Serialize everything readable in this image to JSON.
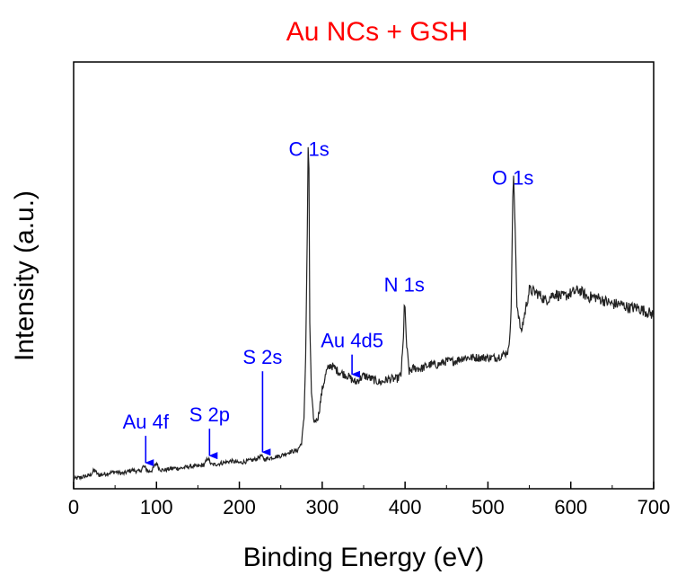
{
  "colors": {
    "title": "#ff0000",
    "annotation": "#0000ff",
    "line": "#222222",
    "axis": "#000000"
  },
  "chart_data": {
    "type": "line",
    "title": "Au NCs + GSH",
    "xlabel": "Binding Energy (eV)",
    "ylabel": "Intensity (a.u.)",
    "xlim": [
      0,
      700
    ],
    "ylim": [
      0,
      100
    ],
    "xticks": [
      0,
      100,
      200,
      300,
      400,
      500,
      600,
      700
    ],
    "xtick_labels": [
      "0",
      "100",
      "200",
      "300",
      "400",
      "500",
      "600",
      "700"
    ],
    "y_tick_labels": false,
    "grid": false,
    "legend": "none",
    "series": [
      {
        "x": [
          0,
          10,
          20,
          25,
          30,
          40,
          50,
          60,
          70,
          80,
          84,
          87,
          90,
          95,
          100,
          103,
          106,
          110,
          120,
          130,
          140,
          150,
          158,
          162,
          166,
          170,
          180,
          190,
          200,
          210,
          220,
          226,
          230,
          240,
          250,
          260,
          270,
          275,
          278,
          280,
          282,
          283,
          284,
          285,
          287,
          290,
          295,
          300,
          305,
          310,
          320,
          330,
          340,
          350,
          360,
          370,
          380,
          390,
          395,
          398,
          399,
          400,
          402,
          405,
          410,
          420,
          430,
          440,
          450,
          460,
          470,
          480,
          490,
          500,
          510,
          520,
          525,
          528,
          530,
          531,
          533,
          535,
          540,
          545,
          550,
          560,
          570,
          580,
          590,
          600,
          610,
          620,
          630,
          640,
          650,
          660,
          670,
          680,
          690,
          700
        ],
        "y": [
          1.0,
          1.5,
          2.0,
          3.5,
          2.0,
          2.5,
          3.0,
          2.5,
          3.5,
          3.0,
          4.5,
          4.0,
          3.0,
          3.5,
          5.5,
          4.0,
          3.5,
          3.5,
          4.0,
          4.0,
          4.5,
          4.5,
          5.0,
          7.0,
          5.0,
          5.0,
          5.5,
          6.0,
          5.5,
          6.0,
          6.5,
          7.5,
          6.5,
          7.0,
          7.5,
          8.5,
          9.0,
          11.0,
          18.0,
          35.0,
          70.0,
          94.0,
          88.0,
          45.0,
          25.0,
          17.0,
          18.0,
          26.0,
          31.0,
          33.0,
          31.0,
          30.0,
          28.0,
          30.0,
          29.0,
          28.0,
          29.0,
          29.0,
          30.0,
          40.0,
          50.0,
          48.0,
          38.0,
          31.0,
          32.0,
          32.0,
          33.0,
          33.0,
          34.0,
          34.0,
          35.0,
          35.0,
          35.0,
          35.0,
          35.0,
          36.0,
          37.0,
          48.0,
          80.0,
          86.0,
          70.0,
          50.0,
          42.0,
          48.0,
          54.0,
          53.0,
          51.0,
          53.0,
          52.0,
          53.0,
          54.0,
          52.0,
          52.0,
          51.0,
          50.0,
          50.0,
          49.0,
          49.0,
          48.0,
          47.0
        ]
      }
    ],
    "annotations": [
      {
        "text": "Au 4f",
        "x": 87,
        "arrow": true
      },
      {
        "text": "S 2p",
        "x": 164,
        "arrow": true
      },
      {
        "text": "S 2s",
        "x": 228,
        "arrow": true
      },
      {
        "text": "Au 4d5",
        "x": 336,
        "arrow": true
      },
      {
        "text": "C 1s",
        "x": 284,
        "arrow": false
      },
      {
        "text": "N 1s",
        "x": 399,
        "arrow": false
      },
      {
        "text": "O 1s",
        "x": 530,
        "arrow": false
      }
    ]
  }
}
